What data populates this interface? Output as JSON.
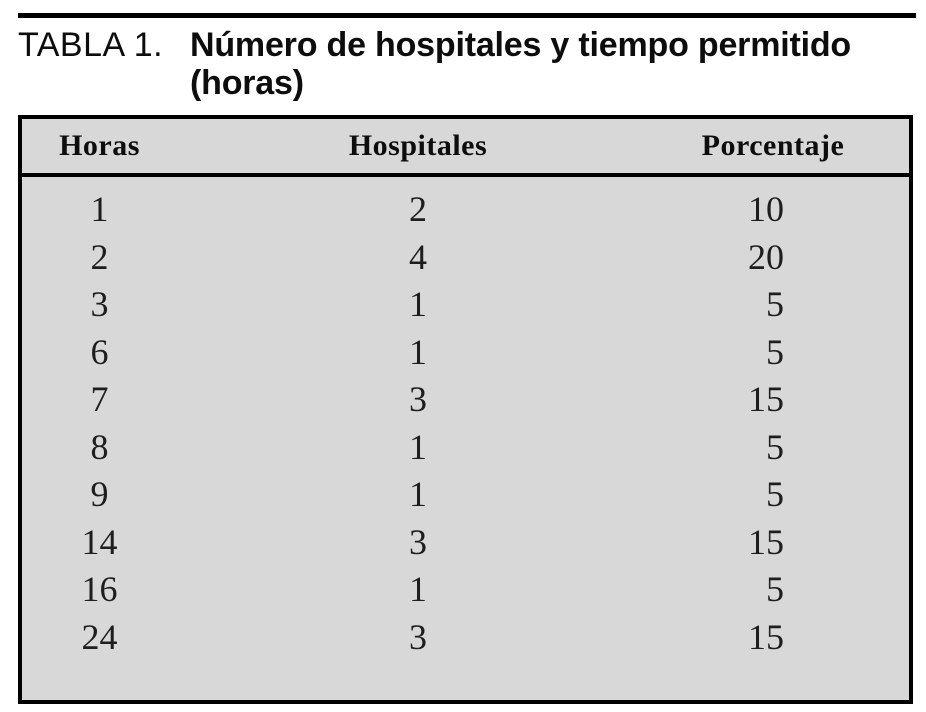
{
  "caption": {
    "label": "TABLA 1.",
    "line1": "Número de hospitales y tiempo permitido",
    "line2": "(horas)"
  },
  "table": {
    "columns": [
      "Horas",
      "Hospitales",
      "Porcentaje"
    ],
    "rows": [
      [
        "1",
        "2",
        "10"
      ],
      [
        "2",
        "4",
        "20"
      ],
      [
        "3",
        "1",
        "5"
      ],
      [
        "6",
        "1",
        "5"
      ],
      [
        "7",
        "3",
        "15"
      ],
      [
        "8",
        "1",
        "5"
      ],
      [
        "9",
        "1",
        "5"
      ],
      [
        "14",
        "3",
        "15"
      ],
      [
        "16",
        "1",
        "5"
      ],
      [
        "24",
        "3",
        "15"
      ]
    ]
  },
  "colors": {
    "table_background": "#d8d8d8",
    "rule": "#000000",
    "text": "#1e1e1e"
  },
  "chart_data": {
    "type": "table",
    "title": "TABLA 1. Número de hospitales y tiempo permitido (horas)",
    "columns": [
      "Horas",
      "Hospitales",
      "Porcentaje"
    ],
    "rows": [
      [
        1,
        2,
        10
      ],
      [
        2,
        4,
        20
      ],
      [
        3,
        1,
        5
      ],
      [
        6,
        1,
        5
      ],
      [
        7,
        3,
        15
      ],
      [
        8,
        1,
        5
      ],
      [
        9,
        1,
        5
      ],
      [
        14,
        3,
        15
      ],
      [
        16,
        1,
        5
      ],
      [
        24,
        3,
        15
      ]
    ]
  }
}
